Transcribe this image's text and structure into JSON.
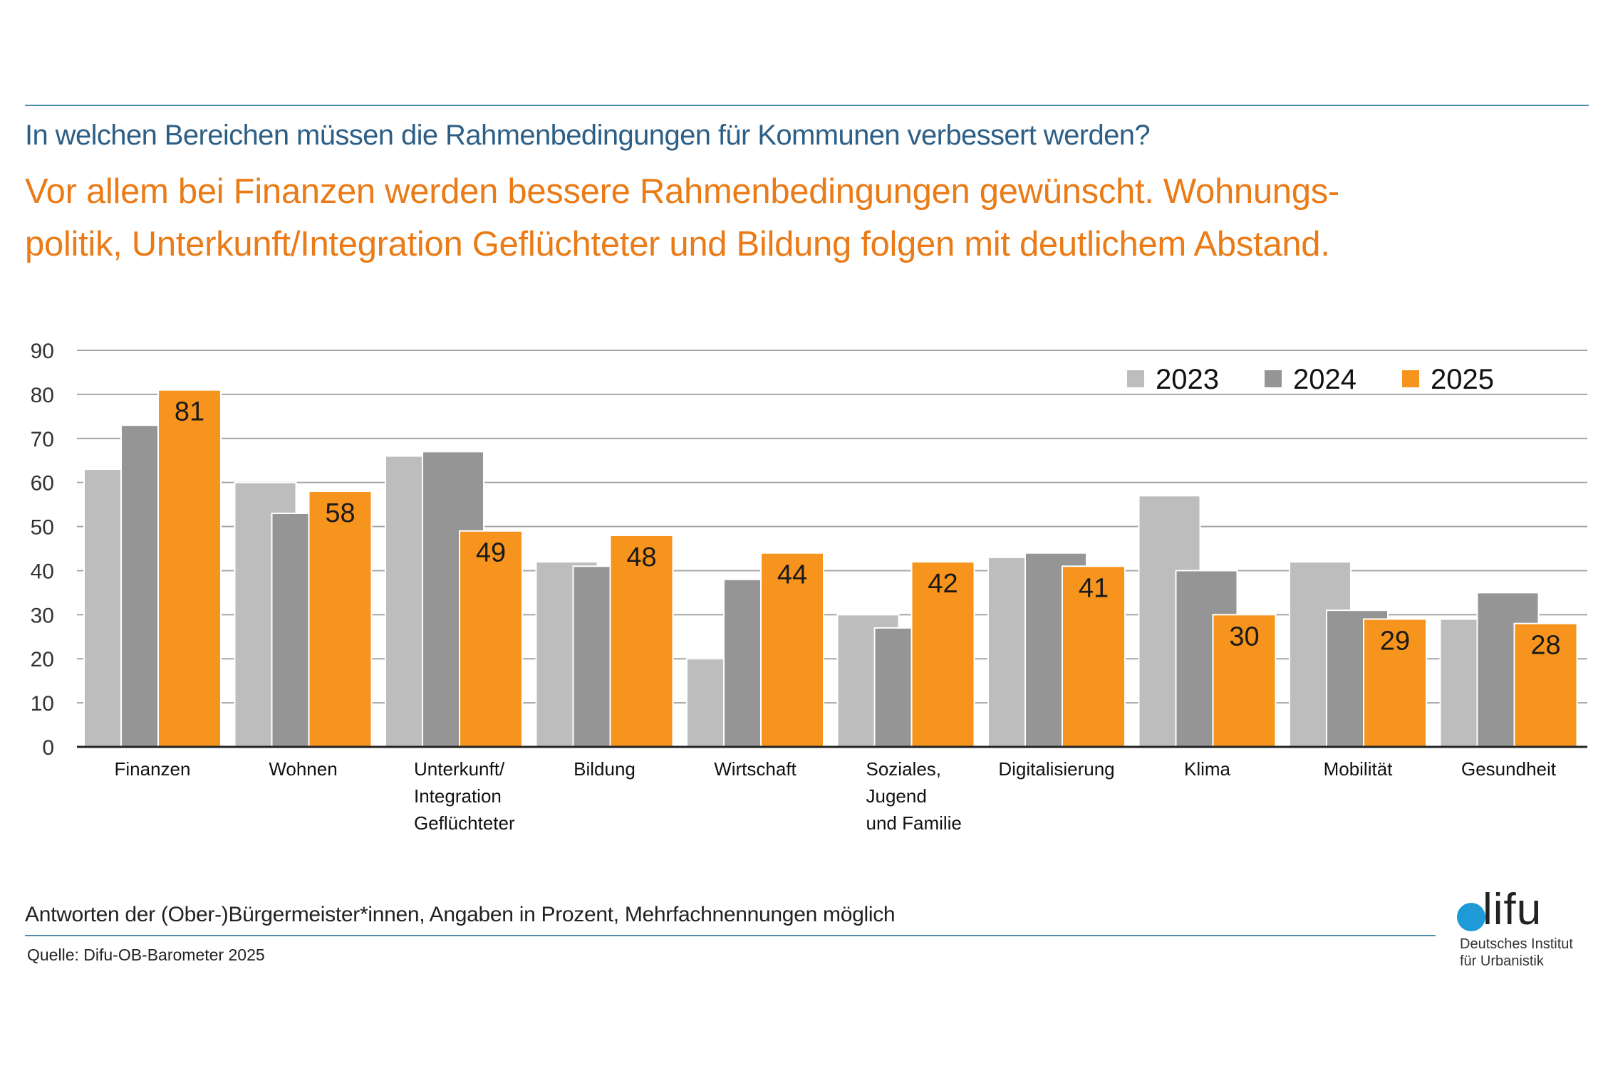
{
  "header": {
    "question": "In welchen Bereichen müssen die Rahmenbedingungen für Kommunen verbessert werden?",
    "headline": "Vor allem bei Finanzen werden bessere Rahmenbedingungen gewünscht. Wohnungs-politik, Unterkunft/Integration Geflüchteter und Bildung folgen mit deutlichem Abstand.",
    "headline_line1": "Vor allem bei Finanzen werden bessere Rahmenbedingungen gewünscht. Wohnungs-",
    "headline_line2": "politik, Unterkunft/Integration Geflüchteter und Bildung folgen mit deutlichem Abstand."
  },
  "colors": {
    "series_2023": "#bdbdbd",
    "series_2024": "#959595",
    "series_2025": "#f7941d",
    "question_text": "#2d5f86",
    "headline_text": "#ea7b16",
    "rule": "#4a8fab",
    "logo_dot": "#1e9ad6"
  },
  "chart_data": {
    "type": "bar",
    "title": "In welchen Bereichen müssen die Rahmenbedingungen für Kommunen verbessert werden?",
    "xlabel": "",
    "ylabel": "",
    "ylim": [
      0,
      90
    ],
    "yticks": [
      0,
      10,
      20,
      30,
      40,
      50,
      60,
      70,
      80,
      90
    ],
    "grid": true,
    "legend_position": "top-right",
    "categories": [
      [
        "Finanzen"
      ],
      [
        "Wohnen"
      ],
      [
        "Unterkunft/",
        "Integration",
        "Geflüchteter"
      ],
      [
        "Bildung"
      ],
      [
        "Wirtschaft"
      ],
      [
        "Soziales,",
        "Jugend",
        "und Familie"
      ],
      [
        "Digitalisierung"
      ],
      [
        "Klima"
      ],
      [
        "Mobilität"
      ],
      [
        "Gesundheit"
      ]
    ],
    "series": [
      {
        "name": "2023",
        "values": [
          63,
          60,
          66,
          42,
          20,
          30,
          43,
          57,
          42,
          29
        ],
        "labeled": false
      },
      {
        "name": "2024",
        "values": [
          73,
          53,
          67,
          41,
          38,
          27,
          44,
          40,
          31,
          35
        ],
        "labeled": false
      },
      {
        "name": "2025",
        "values": [
          81,
          58,
          49,
          48,
          44,
          42,
          41,
          30,
          29,
          28
        ],
        "labeled": true
      }
    ]
  },
  "footer": {
    "note": "Antworten der (Ober-)Bürgermeister*innen, Angaben in Prozent, Mehrfachnennungen möglich",
    "source": "Quelle: Difu-OB-Barometer 2025"
  },
  "logo": {
    "wordmark": "lifu",
    "subtitle_line1": "Deutsches Institut",
    "subtitle_line2": "für Urbanistik"
  }
}
